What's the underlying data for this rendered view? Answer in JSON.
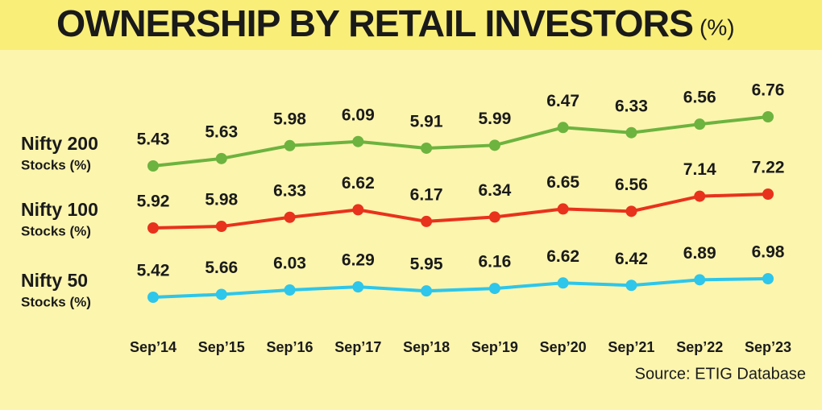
{
  "chart_data": {
    "type": "line",
    "title": "OWNERSHIP BY RETAIL INVESTORS",
    "title_unit": "(%)",
    "source": "Source: ETIG Database",
    "categories": [
      "Sep’14",
      "Sep’15",
      "Sep’16",
      "Sep’17",
      "Sep’18",
      "Sep’19",
      "Sep’20",
      "Sep’21",
      "Sep’22",
      "Sep’23"
    ],
    "series": [
      {
        "name": "Nifty 200",
        "unit_label": "Stocks (%)",
        "color": "#6db33f",
        "values": [
          5.43,
          5.63,
          5.98,
          6.09,
          5.91,
          5.99,
          6.47,
          6.33,
          6.56,
          6.76
        ]
      },
      {
        "name": "Nifty 100",
        "unit_label": "Stocks (%)",
        "color": "#e8321c",
        "values": [
          5.92,
          5.98,
          6.33,
          6.62,
          6.17,
          6.34,
          6.65,
          6.56,
          7.14,
          7.22
        ]
      },
      {
        "name": "Nifty 50",
        "unit_label": "Stocks (%)",
        "color": "#2ec6ea",
        "values": [
          5.42,
          5.66,
          6.03,
          6.29,
          5.95,
          6.16,
          6.62,
          6.42,
          6.89,
          6.98
        ]
      }
    ]
  }
}
